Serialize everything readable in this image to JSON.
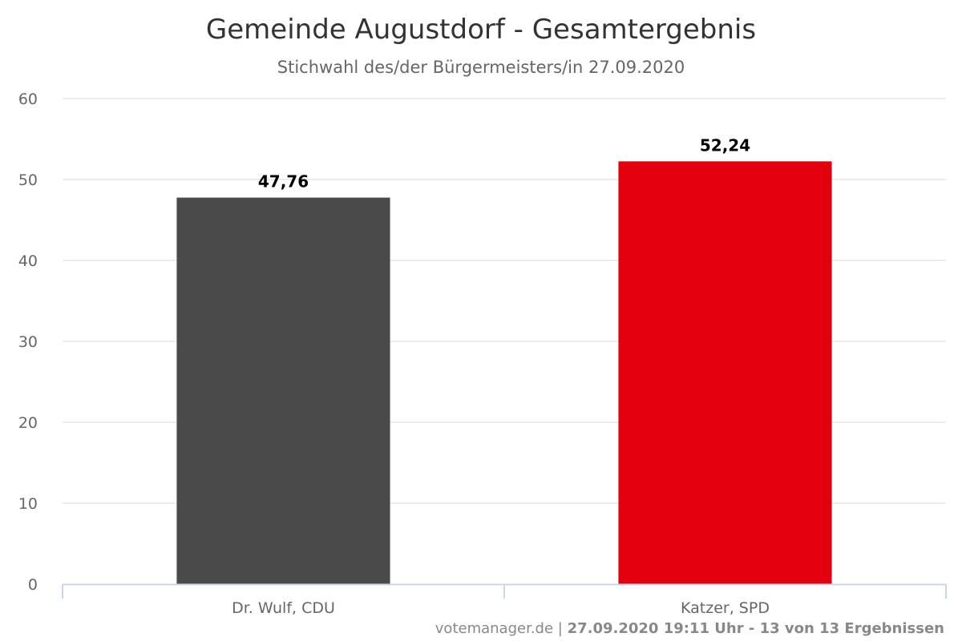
{
  "chart_data": {
    "type": "bar",
    "title": "Gemeinde Augustdorf - Gesamtergebnis",
    "subtitle": "Stichwahl des/der Bürgermeisters/in 27.09.2020",
    "categories": [
      "Dr. Wulf, CDU",
      "Katzer, SPD"
    ],
    "values": [
      47.76,
      52.24
    ],
    "data_labels": [
      "47,76",
      "52,24"
    ],
    "colors": [
      "#4a4a4a",
      "#e2000f"
    ],
    "ylim": [
      0,
      60
    ],
    "yticks": [
      0,
      10,
      20,
      30,
      40,
      50,
      60
    ],
    "xlabel": "",
    "ylabel": "",
    "grid": true,
    "legend": "none"
  },
  "credits": {
    "source": "votemanager.de |",
    "detail": "27.09.2020 19:11 Uhr - 13 von 13 Ergebnissen"
  }
}
